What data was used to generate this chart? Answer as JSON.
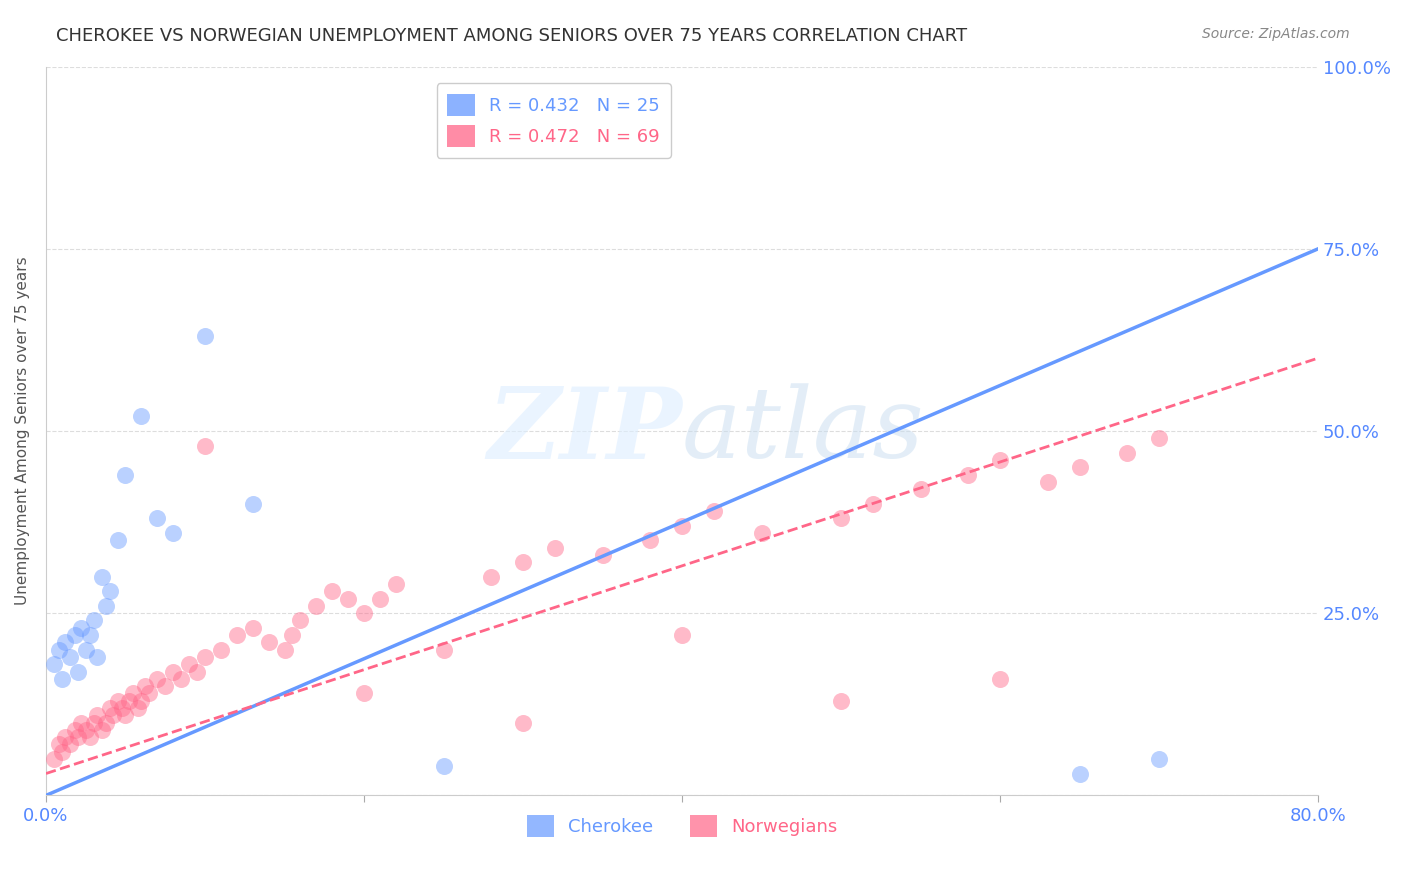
{
  "title": "CHEROKEE VS NORWEGIAN UNEMPLOYMENT AMONG SENIORS OVER 75 YEARS CORRELATION CHART",
  "source": "Source: ZipAtlas.com",
  "ylabel": "Unemployment Among Seniors over 75 years",
  "xlim": [
    0.0,
    0.8
  ],
  "ylim": [
    0.0,
    1.0
  ],
  "cherokee_color": "#6699ff",
  "norwegian_color": "#ff6688",
  "cherokee_R": 0.432,
  "cherokee_N": 25,
  "norwegian_R": 0.472,
  "norwegian_N": 69,
  "cherokee_line_x": [
    0.0,
    0.8
  ],
  "cherokee_line_y": [
    0.0,
    0.75
  ],
  "norwegian_line_x": [
    0.0,
    0.8
  ],
  "norwegian_line_y": [
    0.03,
    0.6
  ],
  "cherokee_x": [
    0.005,
    0.008,
    0.01,
    0.012,
    0.015,
    0.018,
    0.02,
    0.022,
    0.025,
    0.028,
    0.03,
    0.032,
    0.035,
    0.038,
    0.04,
    0.045,
    0.05,
    0.06,
    0.07,
    0.08,
    0.1,
    0.13,
    0.25,
    0.7,
    0.65
  ],
  "cherokee_y": [
    0.18,
    0.2,
    0.16,
    0.21,
    0.19,
    0.22,
    0.17,
    0.23,
    0.2,
    0.22,
    0.24,
    0.19,
    0.3,
    0.26,
    0.28,
    0.35,
    0.44,
    0.52,
    0.38,
    0.36,
    0.63,
    0.4,
    0.04,
    0.05,
    0.03
  ],
  "norwegian_x": [
    0.005,
    0.008,
    0.01,
    0.012,
    0.015,
    0.018,
    0.02,
    0.022,
    0.025,
    0.028,
    0.03,
    0.032,
    0.035,
    0.038,
    0.04,
    0.042,
    0.045,
    0.048,
    0.05,
    0.052,
    0.055,
    0.058,
    0.06,
    0.062,
    0.065,
    0.07,
    0.075,
    0.08,
    0.085,
    0.09,
    0.095,
    0.1,
    0.11,
    0.12,
    0.13,
    0.14,
    0.15,
    0.155,
    0.16,
    0.17,
    0.18,
    0.19,
    0.2,
    0.21,
    0.22,
    0.25,
    0.28,
    0.3,
    0.32,
    0.35,
    0.38,
    0.4,
    0.42,
    0.45,
    0.5,
    0.52,
    0.55,
    0.58,
    0.6,
    0.63,
    0.65,
    0.68,
    0.7,
    0.1,
    0.2,
    0.3,
    0.4,
    0.5,
    0.6
  ],
  "norwegian_y": [
    0.05,
    0.07,
    0.06,
    0.08,
    0.07,
    0.09,
    0.08,
    0.1,
    0.09,
    0.08,
    0.1,
    0.11,
    0.09,
    0.1,
    0.12,
    0.11,
    0.13,
    0.12,
    0.11,
    0.13,
    0.14,
    0.12,
    0.13,
    0.15,
    0.14,
    0.16,
    0.15,
    0.17,
    0.16,
    0.18,
    0.17,
    0.19,
    0.2,
    0.22,
    0.23,
    0.21,
    0.2,
    0.22,
    0.24,
    0.26,
    0.28,
    0.27,
    0.25,
    0.27,
    0.29,
    0.2,
    0.3,
    0.32,
    0.34,
    0.33,
    0.35,
    0.37,
    0.39,
    0.36,
    0.38,
    0.4,
    0.42,
    0.44,
    0.46,
    0.43,
    0.45,
    0.47,
    0.49,
    0.48,
    0.14,
    0.1,
    0.22,
    0.13,
    0.16
  ],
  "background_color": "#ffffff",
  "grid_color": "#dddddd",
  "title_color": "#333333",
  "tick_color": "#5588ff"
}
